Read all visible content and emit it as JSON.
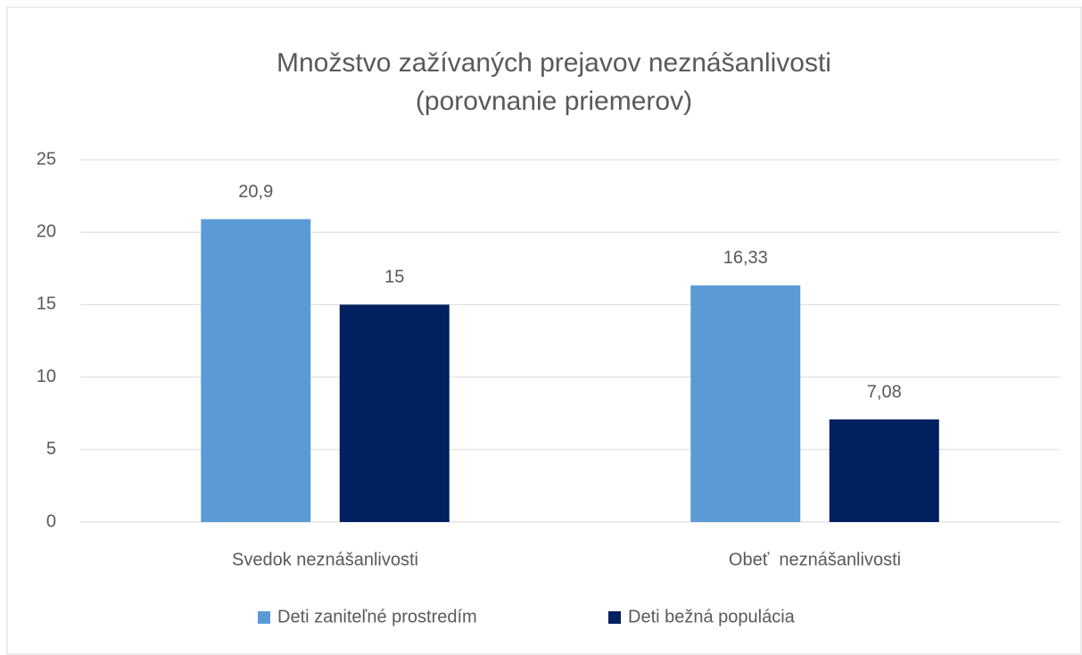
{
  "chart_data": {
    "type": "bar",
    "title": [
      "Množstvo zažívaných prejavov neznášanlivosti",
      "(porovnanie priemerov)"
    ],
    "categories": [
      "Svedok neznášanlivosti",
      "Obeť  neznášanlivosti"
    ],
    "series": [
      {
        "name": "Deti zaniteľné prostredím",
        "color": "#5b9bd5",
        "values": [
          20.9,
          16.33
        ],
        "value_labels": [
          "20,9",
          "16,33"
        ]
      },
      {
        "name": "Deti bežná populácia",
        "color": "#002060",
        "values": [
          15,
          7.08
        ],
        "value_labels": [
          "15",
          "7,08"
        ]
      }
    ],
    "ylim": [
      0,
      25
    ],
    "yticks": [
      0,
      5,
      10,
      15,
      20,
      25
    ],
    "grid": true,
    "legend": "bottom"
  }
}
